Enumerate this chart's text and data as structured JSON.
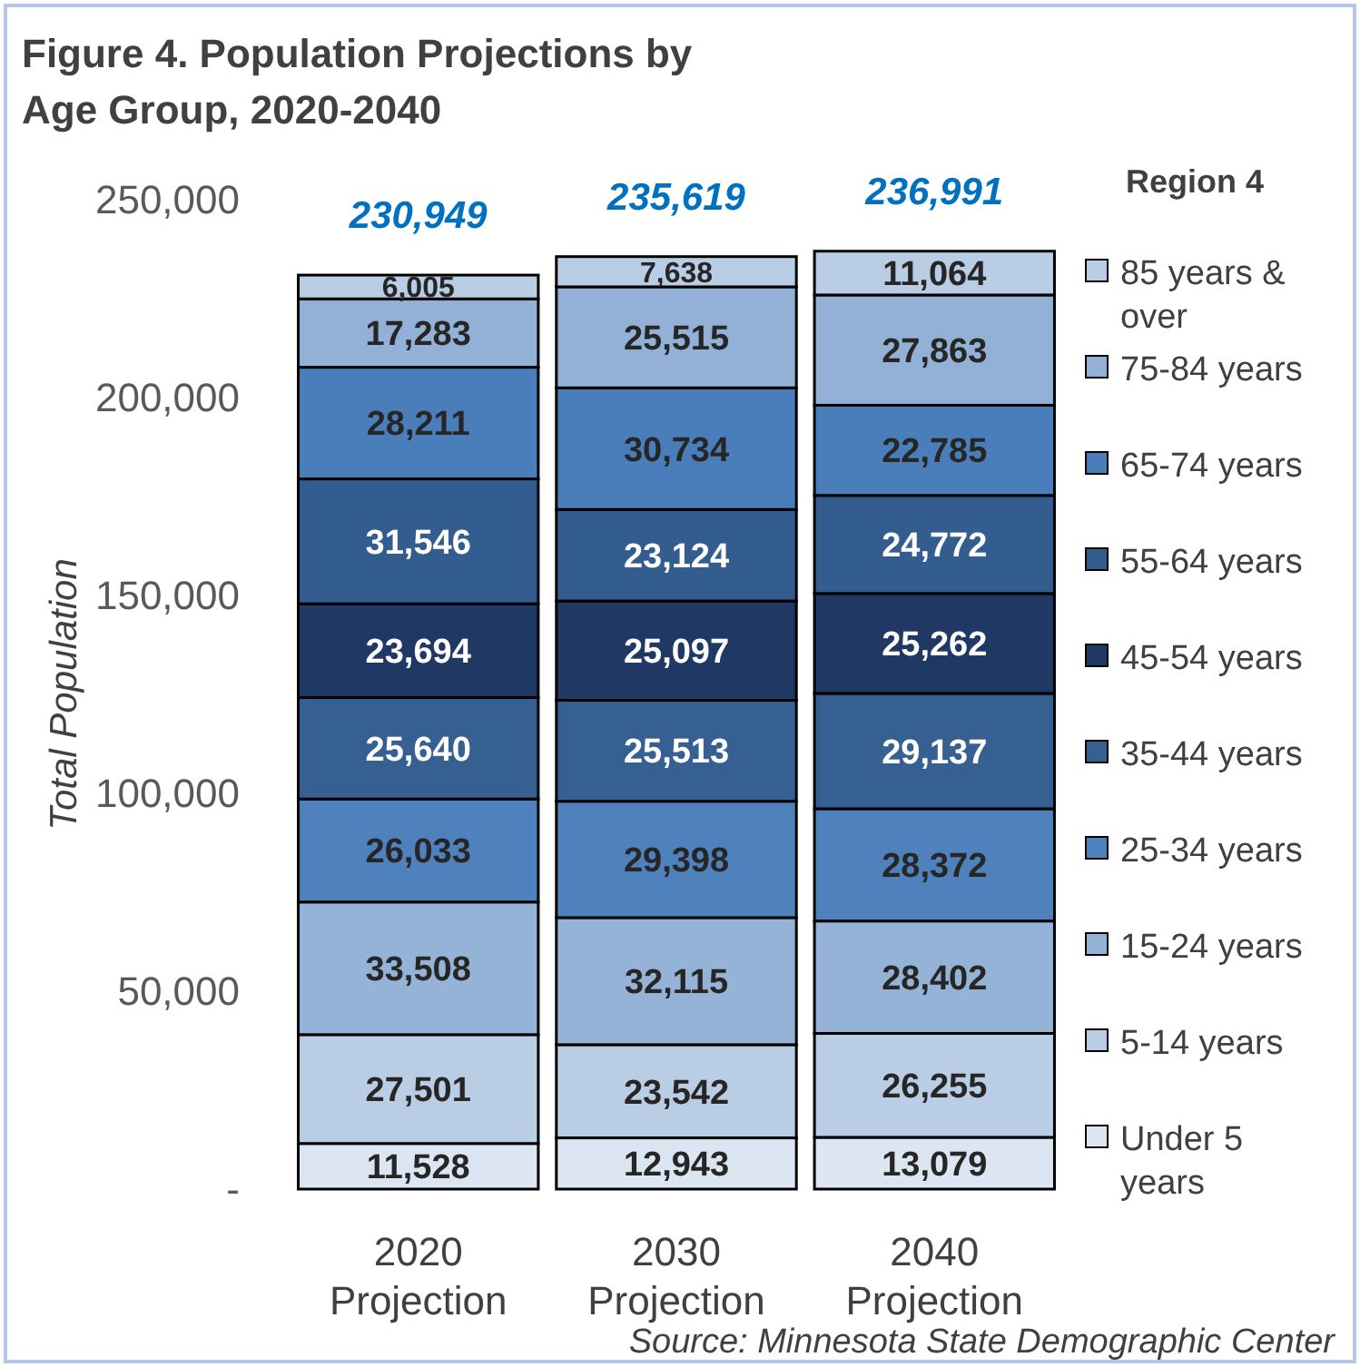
{
  "chart_data": {
    "type": "bar",
    "stacked": true,
    "title": "Figure 4. Population Projections by Age Group, 2020-2040",
    "ylabel": "Total Population",
    "legend_title": "Region 4",
    "legend": "right",
    "grid": false,
    "categories": [
      "2020 Projection",
      "2030 Projection",
      "2040 Projection"
    ],
    "ylim": [
      0,
      250000
    ],
    "yticks": [
      {
        "value": 0,
        "label": "-"
      },
      {
        "value": 50000,
        "label": "50,000"
      },
      {
        "value": 100000,
        "label": "100,000"
      },
      {
        "value": 150000,
        "label": "150,000"
      },
      {
        "value": 200000,
        "label": "200,000"
      },
      {
        "value": 250000,
        "label": "250,000"
      }
    ],
    "totals": [
      "230,949",
      "235,619",
      "236,991"
    ],
    "annotations": [
      "Source: Minnesota State Demographic Center"
    ],
    "series": [
      {
        "name": "Under 5 years",
        "color": "#dce6f2",
        "values": [
          11528,
          12943,
          13079
        ],
        "value_labels": [
          "11,528",
          "12,943",
          "13,079"
        ]
      },
      {
        "name": "5-14 years",
        "color": "#b9cde5",
        "values": [
          27501,
          23542,
          26255
        ],
        "value_labels": [
          "27,501",
          "23,542",
          "26,255"
        ]
      },
      {
        "name": "15-24 years",
        "color": "#95b3d7",
        "values": [
          33508,
          32115,
          28402
        ],
        "value_labels": [
          "33,508",
          "32,115",
          "28,402"
        ]
      },
      {
        "name": "25-34 years",
        "color": "#4f81bd",
        "values": [
          26033,
          29398,
          28372
        ],
        "value_labels": [
          "26,033",
          "29,398",
          "28,372"
        ]
      },
      {
        "name": "35-44 years",
        "color": "#376092",
        "values": [
          25640,
          25513,
          29137
        ],
        "value_labels": [
          "25,640",
          "25,513",
          "29,137"
        ]
      },
      {
        "name": "45-54 years",
        "color": "#1f3864",
        "values": [
          23694,
          25097,
          25262
        ],
        "value_labels": [
          "23,694",
          "25,097",
          "25,262"
        ]
      },
      {
        "name": "55-64 years",
        "color": "#345d8f",
        "values": [
          31546,
          23124,
          24772
        ],
        "value_labels": [
          "31,546",
          "23,124",
          "24,772"
        ]
      },
      {
        "name": "65-74 years",
        "color": "#4a7ebb",
        "values": [
          28211,
          30734,
          22785
        ],
        "value_labels": [
          "28,211",
          "30,734",
          "22,785"
        ]
      },
      {
        "name": "75-84 years",
        "color": "#93b1d6",
        "values": [
          17283,
          25515,
          27863
        ],
        "value_labels": [
          "17,283",
          "25,515",
          "27,863"
        ]
      },
      {
        "name": "85 years & over",
        "color": "#b9cde5",
        "values": [
          6005,
          7638,
          11064
        ],
        "value_labels": [
          "6,005",
          "7,638",
          "11,064"
        ]
      }
    ]
  }
}
